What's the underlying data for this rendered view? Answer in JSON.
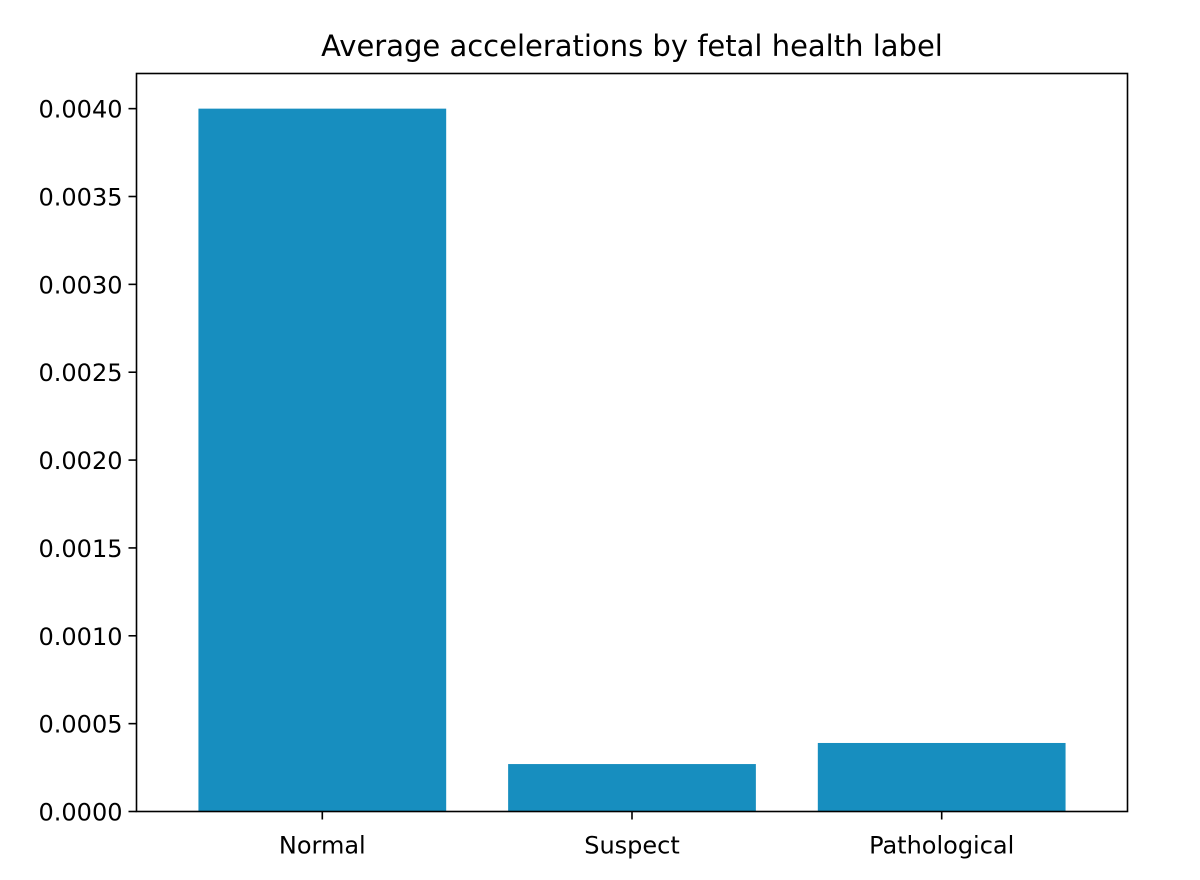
{
  "chart_data": {
    "type": "bar",
    "title": "Average accelerations by fetal health label",
    "xlabel": "",
    "ylabel": "",
    "categories": [
      "Normal",
      "Suspect",
      "Pathological"
    ],
    "values": [
      0.004,
      0.00027,
      0.00039
    ],
    "ylim": [
      0,
      0.0042
    ],
    "yticks": [
      0.0,
      0.0005,
      0.001,
      0.0015,
      0.002,
      0.0025,
      0.003,
      0.0035,
      0.004
    ],
    "ytick_labels": [
      "0.0000",
      "0.0005",
      "0.0010",
      "0.0015",
      "0.0020",
      "0.0025",
      "0.0030",
      "0.0035",
      "0.0040"
    ],
    "bar_color": "#178ebf",
    "grid": false,
    "legend": "none"
  }
}
